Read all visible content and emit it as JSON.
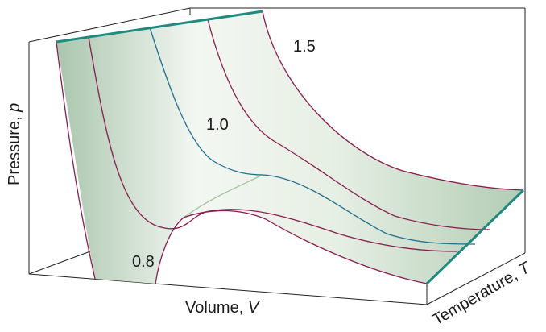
{
  "axes": {
    "y_label": "Pressure, ",
    "y_symbol": "p",
    "x_label": "Volume, ",
    "x_symbol": "V",
    "z_label": "Temperature, ",
    "z_symbol": "T"
  },
  "curve_labels": [
    "1.5",
    "1.0",
    "0.8"
  ],
  "colors": {
    "box": "#222222",
    "isotherm": "#8b1a4f",
    "critical_isotherm": "#1f6f8f",
    "edge": "#1e8a80",
    "surface": "#cfe0cf",
    "binodal": "#a8c8a0"
  }
}
